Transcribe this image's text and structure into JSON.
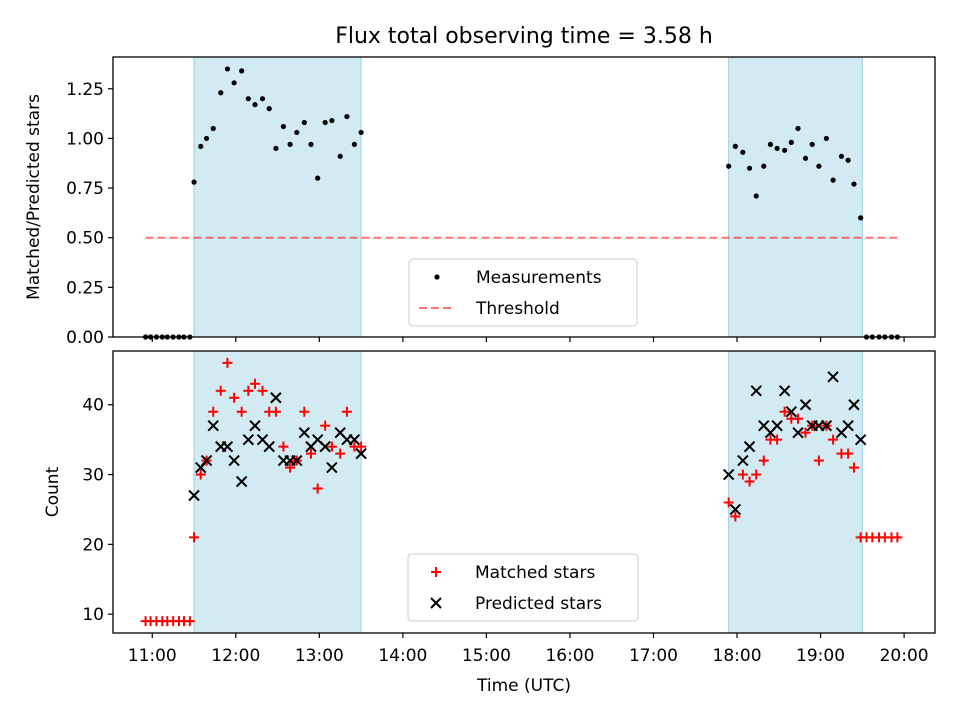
{
  "title": "Flux total observing time = 3.58 h",
  "chart_data": [
    {
      "type": "scatter",
      "ylabel": "Matched/Predicted stars",
      "xlabel": "",
      "xlim": [
        10.53,
        20.37
      ],
      "ylim": [
        0.0,
        1.41
      ],
      "yticks": [
        0.0,
        0.25,
        0.5,
        0.75,
        1.0,
        1.25
      ],
      "ytick_labels": [
        "0.00",
        "0.25",
        "0.50",
        "0.75",
        "1.00",
        "1.25"
      ],
      "shaded_intervals": [
        [
          11.5,
          13.5
        ],
        [
          17.9,
          19.5
        ]
      ],
      "shade_color": "#add8e6",
      "legend": {
        "placement": "lower center",
        "entries": [
          "Measurements",
          "Threshold"
        ]
      },
      "threshold": {
        "name": "Threshold",
        "value": 0.5,
        "x_range": [
          10.92,
          19.92
        ],
        "color": "#ff0000",
        "style": "dashed"
      },
      "series": [
        {
          "name": "Measurements",
          "color": "#000000",
          "x": [
            10.92,
            10.98,
            11.05,
            11.12,
            11.18,
            11.25,
            11.32,
            11.38,
            11.45,
            11.5,
            11.58,
            11.65,
            11.73,
            11.82,
            11.9,
            11.98,
            12.07,
            12.15,
            12.23,
            12.32,
            12.4,
            12.48,
            12.57,
            12.65,
            12.73,
            12.82,
            12.9,
            12.98,
            13.07,
            13.15,
            13.25,
            13.33,
            13.42,
            13.5,
            17.9,
            17.98,
            18.07,
            18.15,
            18.23,
            18.32,
            18.4,
            18.48,
            18.57,
            18.65,
            18.73,
            18.82,
            18.9,
            18.98,
            19.07,
            19.15,
            19.25,
            19.33,
            19.4,
            19.48,
            19.55,
            19.62,
            19.7,
            19.77,
            19.85,
            19.92
          ],
          "y": [
            0,
            0,
            0,
            0,
            0,
            0,
            0,
            0,
            0,
            0.78,
            0.96,
            1.0,
            1.05,
            1.23,
            1.35,
            1.28,
            1.34,
            1.2,
            1.17,
            1.2,
            1.15,
            0.95,
            1.06,
            0.97,
            1.03,
            1.08,
            0.97,
            0.8,
            1.08,
            1.09,
            0.91,
            1.11,
            0.97,
            1.03,
            0.86,
            0.96,
            0.93,
            0.85,
            0.71,
            0.86,
            0.97,
            0.95,
            0.94,
            0.98,
            1.05,
            0.9,
            0.97,
            0.86,
            1.0,
            0.79,
            0.91,
            0.89,
            0.77,
            0.6,
            0,
            0,
            0,
            0,
            0,
            0
          ]
        }
      ]
    },
    {
      "type": "scatter",
      "ylabel": "Count",
      "xlabel": "Time (UTC)",
      "xlim": [
        10.53,
        20.37
      ],
      "ylim": [
        7.3,
        47.7
      ],
      "yticks": [
        10,
        20,
        30,
        40
      ],
      "ytick_labels": [
        "10",
        "20",
        "30",
        "40"
      ],
      "xticks": [
        11,
        12,
        13,
        14,
        15,
        16,
        17,
        18,
        19,
        20
      ],
      "xtick_labels": [
        "11:00",
        "12:00",
        "13:00",
        "14:00",
        "15:00",
        "16:00",
        "17:00",
        "18:00",
        "19:00",
        "20:00"
      ],
      "shaded_intervals": [
        [
          11.5,
          13.5
        ],
        [
          17.9,
          19.5
        ]
      ],
      "shade_color": "#add8e6",
      "legend": {
        "placement": "lower center",
        "entries": [
          "Matched stars",
          "Predicted stars"
        ]
      },
      "series": [
        {
          "name": "Matched stars",
          "marker": "plus",
          "color": "#ff0000",
          "x": [
            10.92,
            10.98,
            11.05,
            11.12,
            11.18,
            11.25,
            11.32,
            11.38,
            11.45,
            11.5,
            11.58,
            11.65,
            11.73,
            11.82,
            11.9,
            11.98,
            12.07,
            12.15,
            12.23,
            12.32,
            12.4,
            12.48,
            12.57,
            12.65,
            12.73,
            12.82,
            12.9,
            12.98,
            13.07,
            13.15,
            13.25,
            13.33,
            13.42,
            13.5,
            17.9,
            17.98,
            18.07,
            18.15,
            18.23,
            18.32,
            18.4,
            18.48,
            18.57,
            18.65,
            18.73,
            18.82,
            18.9,
            18.98,
            19.07,
            19.15,
            19.25,
            19.33,
            19.4,
            19.48,
            19.55,
            19.62,
            19.7,
            19.77,
            19.85,
            19.92
          ],
          "y": [
            9,
            9,
            9,
            9,
            9,
            9,
            9,
            9,
            9,
            21,
            30,
            32,
            39,
            42,
            46,
            41,
            39,
            42,
            43,
            42,
            39,
            39,
            34,
            31,
            32,
            39,
            33,
            28,
            37,
            34,
            33,
            39,
            34,
            34,
            26,
            24,
            30,
            29,
            30,
            32,
            35,
            35,
            39,
            38,
            38,
            36,
            37,
            32,
            37,
            35,
            33,
            33,
            31,
            21,
            21,
            21,
            21,
            21,
            21,
            21
          ]
        },
        {
          "name": "Predicted stars",
          "marker": "x",
          "color": "#000000",
          "x": [
            11.5,
            11.58,
            11.65,
            11.73,
            11.82,
            11.9,
            11.98,
            12.07,
            12.15,
            12.23,
            12.32,
            12.4,
            12.48,
            12.57,
            12.65,
            12.73,
            12.82,
            12.9,
            12.98,
            13.07,
            13.15,
            13.25,
            13.33,
            13.42,
            13.5,
            17.9,
            17.98,
            18.07,
            18.15,
            18.23,
            18.32,
            18.4,
            18.48,
            18.57,
            18.65,
            18.73,
            18.82,
            18.9,
            18.98,
            19.07,
            19.15,
            19.25,
            19.33,
            19.4,
            19.48
          ],
          "y": [
            27,
            31,
            32,
            37,
            34,
            34,
            32,
            29,
            35,
            37,
            35,
            34,
            41,
            32,
            32,
            32,
            36,
            34,
            35,
            34,
            31,
            36,
            35,
            35,
            33,
            30,
            25,
            32,
            34,
            42,
            37,
            36,
            37,
            42,
            39,
            36,
            40,
            37,
            37,
            37,
            44,
            36,
            37,
            40,
            35
          ]
        }
      ]
    }
  ]
}
